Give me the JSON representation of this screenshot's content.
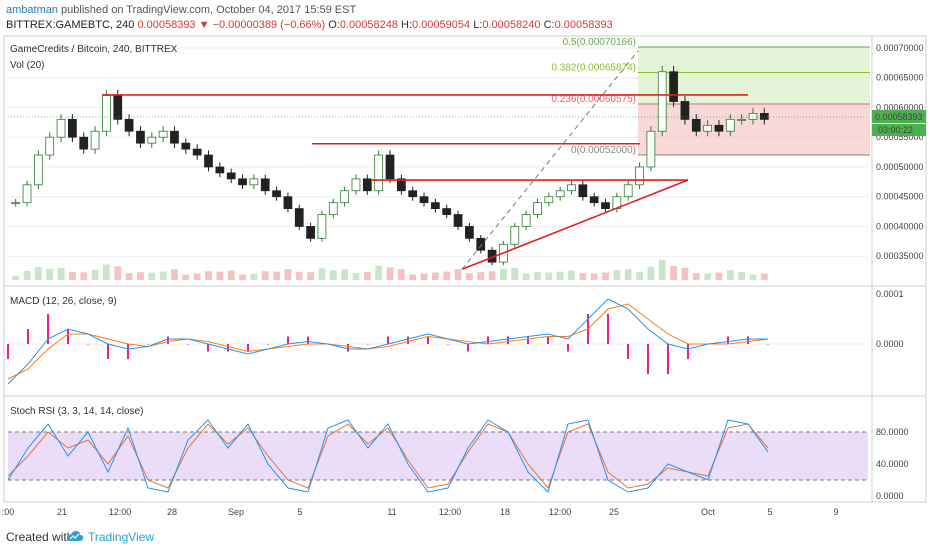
{
  "header": {
    "author": "ambatman",
    "published_text": "published on TradingView.com, October 04, 2017 15:59 EST",
    "symbol_line": "BITTREX:GAMEBTC, 240",
    "last_price": "0.00058393",
    "change_arrow": "▼",
    "change": "−0.00000389 (−0.66%)",
    "o_label": "O:",
    "o_value": "0.00058248",
    "h_label": "H:",
    "h_value": "0.00059054",
    "l_label": "L:",
    "l_value": "0.00058240",
    "c_label": "C:",
    "c_value": "0.00058393"
  },
  "panes": {
    "price_title": "GameCredits / Bitcoin, 240, BITTREX",
    "volume_title": "Vol (20)",
    "macd_title": "MACD (12, 26, close, 9)",
    "stoch_title": "Stoch RSI (3, 3, 14, 14, close)"
  },
  "footer": {
    "created_with": "Created with",
    "brand": "TradingView",
    "logo_icon": "tradingview-cloud-icon"
  },
  "colors": {
    "red_line": "#e02020",
    "candle_up": "#2e7d32",
    "candle_down": "#222222",
    "macd_line": "#2196f3",
    "signal_line": "#ff7f0e",
    "hist": "#e91e8c",
    "stoch_k": "#2196f3",
    "stoch_d": "#e8743b",
    "stoch_band": "#e6d3f5",
    "fib_green": "#d8f0c8",
    "fib_red": "#f6c7c7"
  },
  "chart_data": [
    {
      "type": "candlestick",
      "title": "GameCredits / Bitcoin, 240, BITTREX",
      "y_ticks": [
        "0.00070000",
        "0.00065000",
        "0.00060000",
        "0.00055000",
        "0.00050000",
        "0.00045000",
        "0.00040000",
        "0.00035000"
      ],
      "ylim": [
        0.00031,
        0.00071
      ],
      "x_ticks": [
        ":00",
        "21",
        "12:00",
        "28",
        "Sep",
        "5",
        "11",
        "12:00",
        "18",
        "12:00",
        "25",
        "Oct",
        "5",
        "9"
      ],
      "last_price_label": "0.00058393",
      "countdown_label": "03:00:22",
      "fib_levels": [
        {
          "label": "0.5(0.00070166)",
          "value": 0.00070166
        },
        {
          "label": "0.382(0.00065874)",
          "value": 0.00065874
        },
        {
          "label": "0.236(0.00060575)",
          "value": 0.00060575
        },
        {
          "label": "0(0.00052000)",
          "value": 0.00052
        }
      ],
      "annotations": [
        "horizontal resistance 0.000621",
        "horizontal resistance 0.000539",
        "ascending triangle top 0.000478",
        "ascending triangle support line",
        "dashed trend projection"
      ],
      "series": [
        {
          "values": [
            0.00044,
            0.00047,
            0.00052,
            0.00055,
            0.00058,
            0.00055,
            0.00053,
            0.00056,
            0.00062,
            0.00058,
            0.00056,
            0.00054,
            0.00055,
            0.00056,
            0.00054,
            0.00053,
            0.00052,
            0.0005,
            0.00049,
            0.00048,
            0.00047,
            0.00048,
            0.00046,
            0.00045,
            0.00043,
            0.0004,
            0.00038,
            0.00042,
            0.00044,
            0.00046,
            0.00048,
            0.00046,
            0.00052,
            0.00048,
            0.00046,
            0.00045,
            0.00044,
            0.00043,
            0.00042,
            0.0004,
            0.00038,
            0.00036,
            0.00034,
            0.00037,
            0.0004,
            0.00042,
            0.00044,
            0.00045,
            0.00046,
            0.00047,
            0.00045,
            0.00044,
            0.00043,
            0.00045,
            0.00047,
            0.0005,
            0.00056,
            0.00066,
            0.00061,
            0.00058,
            0.00056,
            0.00057,
            0.00056,
            0.00058,
            0.00058,
            0.00059,
            0.00058
          ]
        }
      ]
    },
    {
      "type": "line",
      "title": "MACD (12, 26, close, 9)",
      "y_ticks": [
        "0.0001",
        "0.0000"
      ],
      "series": [
        {
          "values": [
            -8e-05,
            -4e-05,
            1e-05,
            3e-05,
            2e-05,
            0.0,
            -1e-05,
            -5e-06,
            1e-05,
            1e-05,
            0.0,
            -1e-05,
            -2e-05,
            -1e-05,
            0.0,
            5e-06,
            0.0,
            -1e-05,
            -1e-05,
            0.0,
            1e-05,
            2e-05,
            1e-05,
            0.0,
            5e-06,
            1e-05,
            1.5e-05,
            2e-05,
            1e-05,
            5e-05,
            9e-05,
            7e-05,
            3e-05,
            0.0,
            -1e-05,
            0.0,
            5e-06,
            1e-05,
            1e-05
          ]
        },
        {
          "values": [
            -7e-05,
            -5e-05,
            -1e-05,
            2e-05,
            2e-05,
            1e-05,
            0.0,
            -5e-06,
            5e-06,
            1e-05,
            5e-06,
            -5e-06,
            -1.5e-05,
            -1e-05,
            -5e-06,
            0.0,
            0.0,
            -5e-06,
            -1e-05,
            -5e-06,
            5e-06,
            1.5e-05,
            1e-05,
            5e-06,
            0.0,
            5e-06,
            1e-05,
            1.5e-05,
            1.5e-05,
            3e-05,
            7e-05,
            8e-05,
            5e-05,
            2e-05,
            0.0,
            0.0,
            0.0,
            5e-06,
            1e-05
          ]
        }
      ]
    },
    {
      "type": "line",
      "title": "Stoch RSI (3, 3, 14, 14, close)",
      "y_ticks": [
        "80.0000",
        "40.0000",
        "0.0000"
      ],
      "band": [
        20,
        80
      ],
      "series": [
        {
          "values": [
            20,
            60,
            90,
            50,
            80,
            30,
            85,
            10,
            5,
            70,
            95,
            60,
            90,
            40,
            10,
            5,
            85,
            95,
            60,
            90,
            40,
            5,
            10,
            60,
            95,
            80,
            30,
            5,
            90,
            95,
            20,
            5,
            10,
            40,
            30,
            20,
            95,
            90,
            55
          ]
        },
        {
          "values": [
            25,
            50,
            80,
            60,
            70,
            40,
            75,
            20,
            10,
            60,
            90,
            65,
            85,
            50,
            20,
            10,
            75,
            90,
            65,
            85,
            45,
            10,
            15,
            55,
            90,
            80,
            40,
            10,
            80,
            90,
            30,
            10,
            15,
            35,
            30,
            25,
            85,
            90,
            60
          ]
        }
      ]
    }
  ]
}
